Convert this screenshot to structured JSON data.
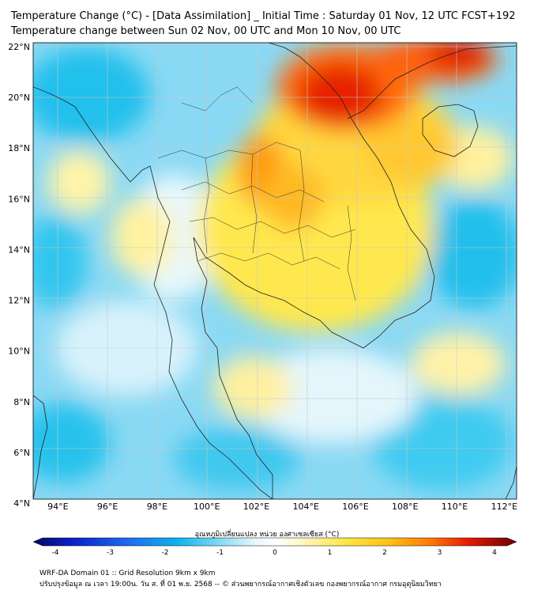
{
  "header": {
    "title_line1": "Temperature Change (°C) - [Data Assimilation] _ Initial Time : Saturday 01 Nov, 12 UTC FCST+192",
    "title_line2": "Temperature change between Sun 02 Nov, 00 UTC and Mon 10 Nov, 00 UTC"
  },
  "map": {
    "lat_ticks": [
      "22°N",
      "20°N",
      "18°N",
      "16°N",
      "14°N",
      "12°N",
      "10°N",
      "8°N",
      "6°N",
      "4°N"
    ],
    "lon_ticks": [
      "94°E",
      "96°E",
      "98°E",
      "100°E",
      "102°E",
      "104°E",
      "106°E",
      "108°E",
      "110°E",
      "112°E"
    ],
    "lat_range": [
      4,
      22
    ],
    "lon_range": [
      93,
      112.5
    ],
    "gridlines": true,
    "colors": {
      "cold": "#00b4e8",
      "neutral": "#ffffff",
      "warm": "#ffe200",
      "hot": "#e61400"
    }
  },
  "colorbar": {
    "title": "อุณหภูมิเปลี่ยนแปลง หน่วย องศาเซลเซียส (°C)",
    "tick_labels": [
      "-4",
      "-3",
      "-2",
      "-1",
      "0",
      "1",
      "2",
      "3",
      "4"
    ],
    "range": [
      -4,
      4
    ]
  },
  "footer": {
    "line1": "WRF-DA Domain 01 :: Grid Resolution 9km x 9km",
    "line2": "ปรับปรุงข้อมูล ณ เวลา 19:00น. วัน ส. ที่ 01 พ.ย. 2568 -- © ส่วนพยากรณ์อากาศเชิงตัวเลข กองพยากรณ์อากาศ กรมอุตุนิยมวิทยา"
  }
}
